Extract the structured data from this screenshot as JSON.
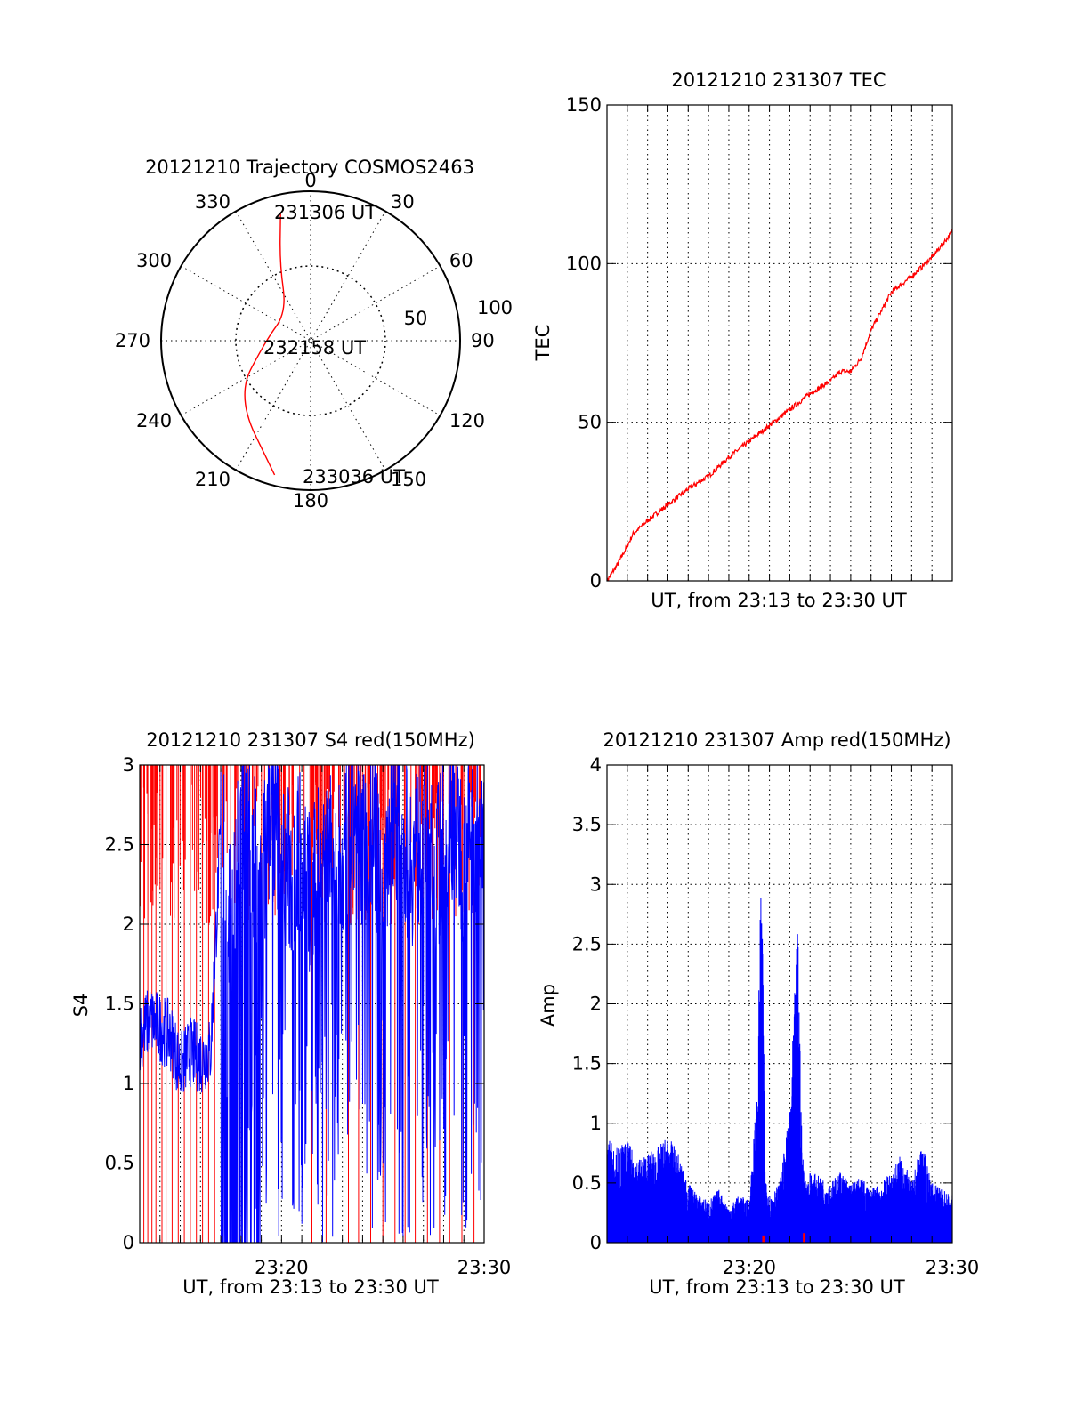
{
  "figure": {
    "background": "#ffffff",
    "colors": {
      "red": "#ff0000",
      "blue": "#0000ff",
      "axis": "#000000"
    }
  },
  "chart_data": [
    {
      "id": "trajectory",
      "type": "polar",
      "title": "20121210 Trajectory COSMOS2463",
      "angle_labels": [
        "0",
        "30",
        "60",
        "90",
        "120",
        "150",
        "180",
        "210",
        "240",
        "270",
        "300",
        "330"
      ],
      "radial_labels": [
        "50",
        "100"
      ],
      "radial_max": 100,
      "series": [
        {
          "color": "#ff0000",
          "points_azimuth_deg_radius": [
            [
              -13.2,
              88
            ],
            [
              -22,
              55
            ],
            [
              -40,
              25
            ],
            [
              -90,
              30
            ],
            [
              -127,
              62
            ],
            [
              -165,
              93
            ]
          ]
        }
      ],
      "annotations": [
        {
          "text": "231306 UT",
          "at": "start"
        },
        {
          "text": "232158 UT",
          "at": "middle"
        },
        {
          "text": "233036 UT",
          "at": "end"
        }
      ]
    },
    {
      "id": "tec",
      "type": "line",
      "title": "20121210 231307 TEC",
      "xlabel": "UT, from 23:13 to 23:30 UT",
      "ylabel": "TEC",
      "ylim": [
        0,
        150
      ],
      "yticks": [
        "0",
        "50",
        "100",
        "150"
      ],
      "xlim_minutes_after_2313": [
        0,
        17
      ],
      "grid": true,
      "series": [
        {
          "color": "#ff0000",
          "x_minutes_after_2313": [
            0,
            0.5,
            1,
            1.3,
            1.5,
            2,
            3,
            4,
            5,
            6,
            7,
            8,
            9,
            10,
            11,
            11.5,
            12,
            12.5,
            13,
            14,
            15,
            16,
            17
          ],
          "y": [
            0,
            5,
            11,
            15,
            16,
            19,
            24,
            29,
            33,
            39,
            44,
            49,
            54,
            59,
            63,
            66,
            66,
            70,
            79,
            91,
            96,
            102,
            110
          ]
        }
      ]
    },
    {
      "id": "s4",
      "type": "line",
      "title": "20121210 231307 S4 red(150MHz)",
      "xlabel": "UT, from 23:13 to 23:30 UT",
      "ylabel": "S4",
      "ylim": [
        0,
        3
      ],
      "yticks": [
        "0",
        "0.5",
        "1",
        "1.5",
        "2",
        "2.5",
        "3"
      ],
      "xticks": [
        "23:20",
        "23:30"
      ],
      "xlim_minutes_after_2313": [
        0,
        17
      ],
      "grid": true,
      "series": [
        {
          "color": "#ff0000",
          "kind": "spikes",
          "x_minutes_after_2313": [
            0.2,
            0.4,
            0.6,
            0.8,
            1.1,
            1.3,
            1.6,
            1.9,
            2.2,
            2.5,
            2.8,
            3.1,
            3.4,
            3.7,
            8.5,
            9.2,
            10.3,
            10.8,
            11.4,
            12.0,
            12.6,
            13.1,
            13.6,
            14.2,
            14.8,
            15.3,
            15.9,
            16.5
          ]
        },
        {
          "color": "#0000ff",
          "x_minutes_after_2313": [
            0,
            0.5,
            1,
            1.5,
            2,
            2.5,
            3,
            3.5,
            4,
            4.5,
            5,
            5.5,
            6,
            6.5,
            7,
            7.5,
            8,
            8.5,
            9,
            9.5,
            10,
            10.5,
            11,
            11.5,
            12,
            12.5,
            13,
            13.5,
            14,
            14.5,
            15,
            15.5,
            16,
            16.5,
            17
          ],
          "y": [
            1.3,
            1.4,
            1.35,
            1.3,
            1.1,
            1.2,
            1.15,
            1.2,
            2.6,
            2.0,
            2.7,
            2.5,
            2.2,
            2.8,
            2.4,
            2.3,
            2.5,
            2.1,
            2.6,
            2.4,
            2.3,
            2.7,
            2.5,
            2.6,
            2.2,
            2.8,
            2.5,
            2.4,
            2.6,
            2.3,
            2.5,
            2.7,
            2.4,
            2.6,
            2.5
          ]
        }
      ]
    },
    {
      "id": "amp",
      "type": "line",
      "title": "20121210 231307 Amp red(150MHz)",
      "xlabel": "UT, from 23:13 to 23:30 UT",
      "ylabel": "Amp",
      "ylim": [
        0,
        4
      ],
      "yticks": [
        "0",
        "0.5",
        "1",
        "1.5",
        "2",
        "2.5",
        "3",
        "3.5",
        "4"
      ],
      "xticks": [
        "23:20",
        "23:30"
      ],
      "xlim_minutes_after_2313": [
        0,
        17
      ],
      "grid": true,
      "series": [
        {
          "color": "#0000ff",
          "x_minutes_after_2313": [
            0,
            0.5,
            1,
            1.5,
            2,
            2.5,
            3,
            3.5,
            4,
            4.5,
            5,
            5.5,
            6,
            6.5,
            7,
            7.4,
            7.6,
            7.8,
            8,
            8.5,
            9,
            9.4,
            9.6,
            9.8,
            10,
            10.5,
            11,
            11.5,
            12,
            12.5,
            13,
            13.5,
            14,
            14.5,
            15,
            15.5,
            16,
            16.5,
            17
          ],
          "y": [
            0.9,
            0.8,
            0.85,
            0.7,
            0.75,
            0.8,
            0.9,
            0.75,
            0.5,
            0.4,
            0.35,
            0.45,
            0.3,
            0.4,
            0.35,
            1.3,
            3.35,
            0.6,
            0.4,
            0.5,
            1.1,
            2.75,
            0.8,
            0.5,
            0.6,
            0.55,
            0.5,
            0.6,
            0.5,
            0.55,
            0.45,
            0.5,
            0.6,
            0.75,
            0.5,
            0.85,
            0.5,
            0.45,
            0.4
          ]
        },
        {
          "color": "#ff0000",
          "kind": "spikes",
          "x_minutes_after_2313": [
            7.7,
            9.7
          ],
          "y": [
            0.06,
            0.08
          ]
        }
      ]
    }
  ]
}
